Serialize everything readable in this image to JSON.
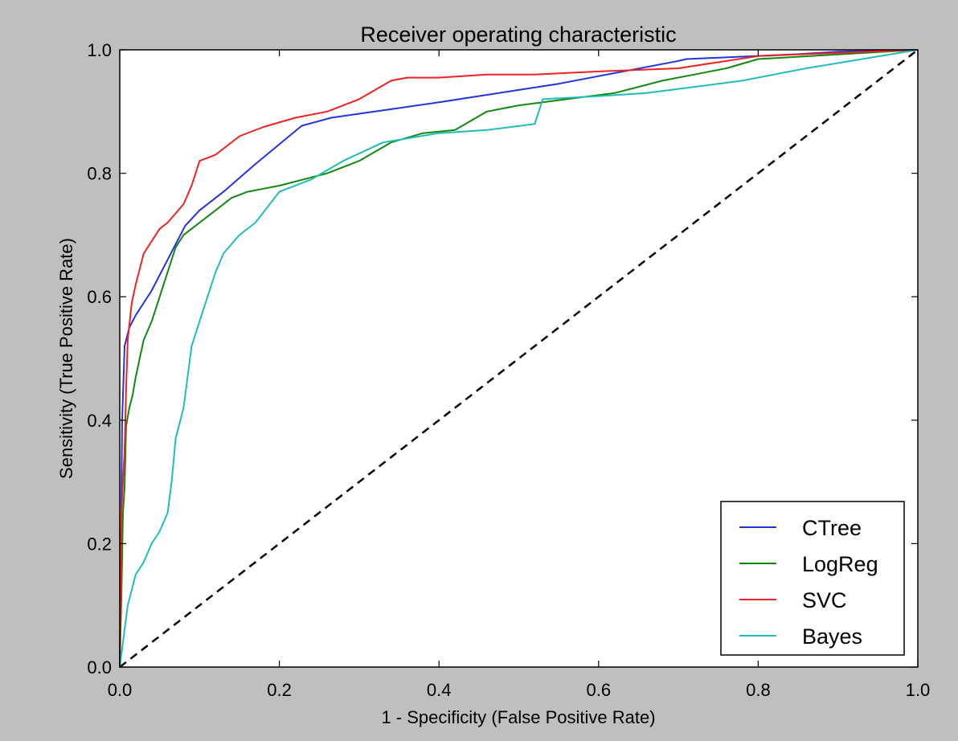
{
  "chart_data": {
    "type": "line",
    "title": "Receiver operating characteristic",
    "xlabel": "1 - Specificity (False Positive Rate)",
    "ylabel": "Sensitivity (True Positive Rate)",
    "xlim": [
      0.0,
      1.0
    ],
    "ylim": [
      0.0,
      1.0
    ],
    "xticks": [
      "0.0",
      "0.2",
      "0.4",
      "0.6",
      "0.8",
      "1.0"
    ],
    "yticks": [
      "0.0",
      "0.2",
      "0.4",
      "0.6",
      "0.8",
      "1.0"
    ],
    "grid": false,
    "legend_position": "lower-right",
    "background": "#bfbfbf",
    "plot_background": "#ffffff",
    "series": [
      {
        "name": "CTree",
        "color": "#2233dd",
        "x": [
          0.0,
          0.003,
          0.006,
          0.012,
          0.02,
          0.04,
          0.06,
          0.082,
          0.1,
          0.13,
          0.17,
          0.228,
          0.265,
          0.4,
          0.55,
          0.7,
          0.71,
          0.85,
          0.9,
          1.0
        ],
        "y": [
          0.0,
          0.4,
          0.52,
          0.55,
          0.57,
          0.61,
          0.66,
          0.715,
          0.74,
          0.77,
          0.815,
          0.877,
          0.89,
          0.915,
          0.945,
          0.982,
          0.985,
          0.993,
          0.997,
          1.0
        ]
      },
      {
        "name": "LogReg",
        "color": "#118811",
        "x": [
          0.0,
          0.002,
          0.004,
          0.006,
          0.008,
          0.012,
          0.016,
          0.02,
          0.025,
          0.03,
          0.04,
          0.05,
          0.055,
          0.06,
          0.07,
          0.08,
          0.09,
          0.1,
          0.12,
          0.14,
          0.16,
          0.18,
          0.2,
          0.23,
          0.26,
          0.3,
          0.34,
          0.38,
          0.42,
          0.46,
          0.5,
          0.56,
          0.62,
          0.68,
          0.72,
          0.76,
          0.8,
          1.0
        ],
        "y": [
          0.0,
          0.11,
          0.25,
          0.29,
          0.39,
          0.42,
          0.44,
          0.47,
          0.5,
          0.53,
          0.56,
          0.6,
          0.62,
          0.64,
          0.68,
          0.7,
          0.71,
          0.72,
          0.74,
          0.76,
          0.77,
          0.775,
          0.78,
          0.79,
          0.8,
          0.82,
          0.85,
          0.865,
          0.87,
          0.9,
          0.91,
          0.92,
          0.93,
          0.95,
          0.96,
          0.97,
          0.985,
          1.0
        ]
      },
      {
        "name": "SVC",
        "color": "#ee2222",
        "x": [
          0.0,
          0.002,
          0.004,
          0.006,
          0.008,
          0.01,
          0.015,
          0.02,
          0.03,
          0.04,
          0.05,
          0.06,
          0.07,
          0.08,
          0.09,
          0.1,
          0.12,
          0.15,
          0.18,
          0.22,
          0.26,
          0.3,
          0.34,
          0.36,
          0.4,
          0.46,
          0.52,
          0.6,
          0.7,
          0.8,
          0.9,
          1.0
        ],
        "y": [
          0.0,
          0.25,
          0.3,
          0.35,
          0.45,
          0.53,
          0.59,
          0.62,
          0.67,
          0.69,
          0.71,
          0.72,
          0.735,
          0.75,
          0.78,
          0.82,
          0.83,
          0.86,
          0.875,
          0.89,
          0.9,
          0.92,
          0.95,
          0.955,
          0.955,
          0.96,
          0.96,
          0.965,
          0.97,
          0.99,
          0.995,
          1.0
        ]
      },
      {
        "name": "Bayes",
        "color": "#22bbbb",
        "x": [
          0.0,
          0.01,
          0.02,
          0.03,
          0.04,
          0.05,
          0.06,
          0.065,
          0.07,
          0.08,
          0.09,
          0.1,
          0.11,
          0.12,
          0.13,
          0.15,
          0.17,
          0.2,
          0.24,
          0.28,
          0.33,
          0.4,
          0.46,
          0.52,
          0.53,
          0.6,
          0.66,
          0.72,
          0.78,
          0.82,
          0.86,
          1.0
        ],
        "y": [
          0.0,
          0.1,
          0.15,
          0.17,
          0.2,
          0.22,
          0.25,
          0.3,
          0.37,
          0.42,
          0.52,
          0.56,
          0.6,
          0.64,
          0.67,
          0.7,
          0.72,
          0.77,
          0.79,
          0.82,
          0.85,
          0.865,
          0.87,
          0.88,
          0.92,
          0.925,
          0.93,
          0.94,
          0.95,
          0.96,
          0.97,
          1.0
        ]
      }
    ],
    "reference_line": {
      "x": [
        0.0,
        1.0
      ],
      "y": [
        0.0,
        1.0
      ],
      "color": "#000000",
      "style": "dashed"
    }
  }
}
